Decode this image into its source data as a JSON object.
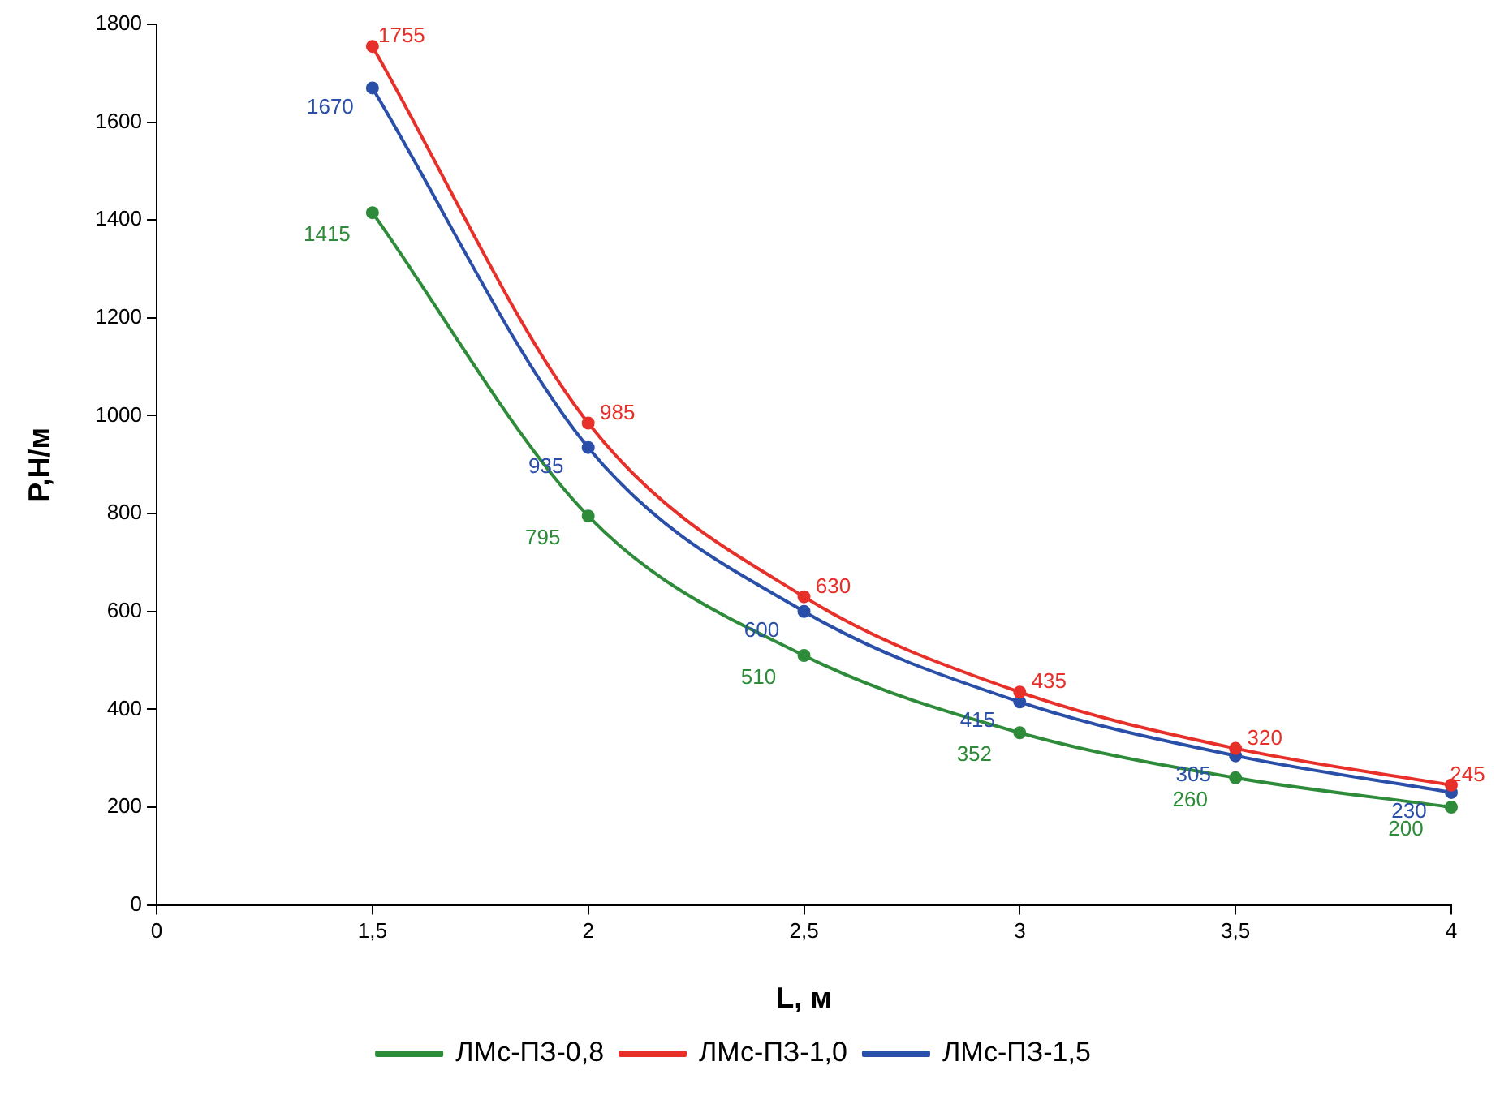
{
  "chart_data": {
    "type": "line",
    "xlabel": "L, м",
    "ylabel": "P,Н/м",
    "categories": [
      "0",
      "1,5",
      "2",
      "2,5",
      "3",
      "3,5",
      "4"
    ],
    "series": [
      {
        "name": "ЛМс-ПЗ-0,8",
        "color": "#2e8b3a",
        "values": [
          null,
          1415,
          795,
          510,
          352,
          260,
          200
        ]
      },
      {
        "name": "ЛМс-ПЗ-1,0",
        "color": "#e8302a",
        "values": [
          null,
          1755,
          985,
          630,
          435,
          320,
          245
        ]
      },
      {
        "name": "ЛМс-ПЗ-1,5",
        "color": "#2a4fa8",
        "values": [
          null,
          1670,
          935,
          600,
          415,
          305,
          230
        ]
      }
    ],
    "ylim": [
      0,
      1800
    ],
    "yticks": [
      0,
      200,
      400,
      600,
      800,
      1000,
      1200,
      1400,
      1600,
      1800
    ],
    "grid": false,
    "legend": "bottom",
    "marker": "circle",
    "line_style": "solid",
    "data_labels": true
  }
}
